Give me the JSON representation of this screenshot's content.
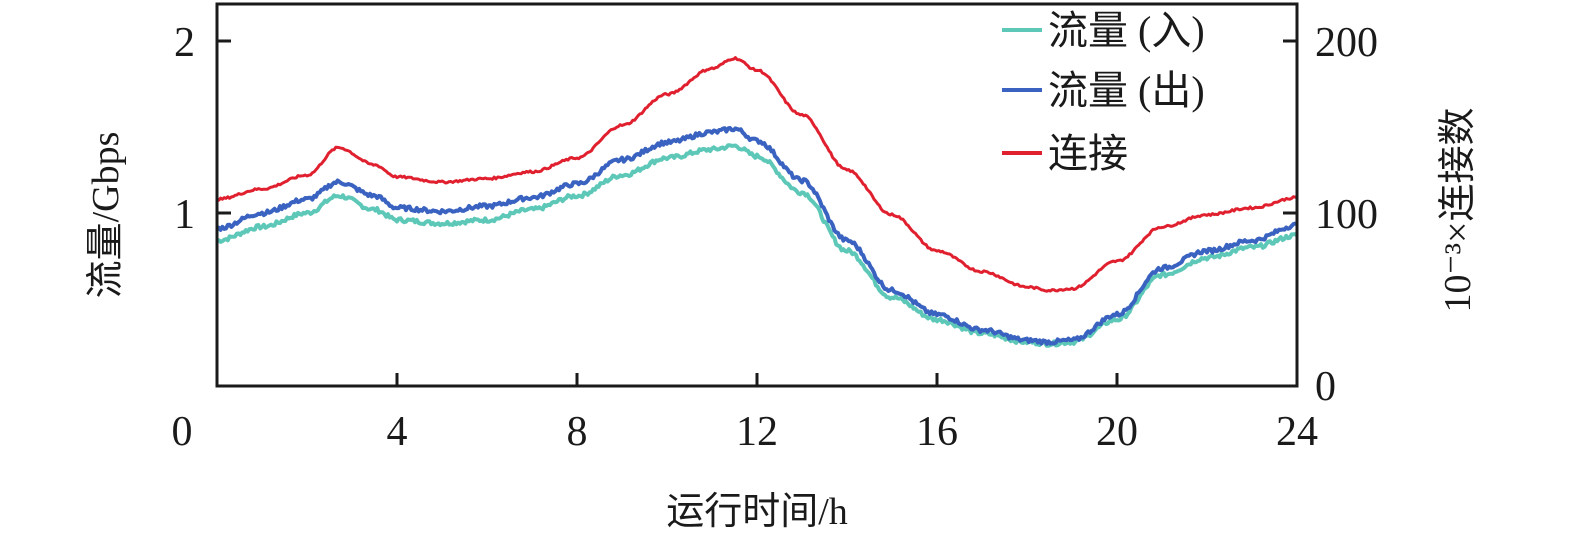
{
  "chart_data": {
    "type": "line",
    "title": "",
    "xlabel": "运行时间/h",
    "ylabel": "流量/Gbps",
    "y2label": "10⁻³×连接数",
    "xlim": [
      0,
      24
    ],
    "ylim": [
      0,
      2.2
    ],
    "y2lim": [
      0,
      220
    ],
    "xticks": [
      "0",
      "4",
      "8",
      "12",
      "16",
      "20",
      "24"
    ],
    "xtick_values": [
      0,
      4,
      8,
      12,
      16,
      20,
      24
    ],
    "yticks": [
      "1",
      "2"
    ],
    "ytick_values": [
      1,
      2
    ],
    "y2ticks": [
      "0",
      "100",
      "200"
    ],
    "y2tick_values": [
      0,
      100,
      200
    ],
    "grid": false,
    "legend_position": "top-right",
    "x": [
      0,
      1,
      2,
      2.7,
      3.5,
      4,
      5,
      6,
      7,
      8,
      9,
      10,
      11,
      11.5,
      12,
      13,
      14,
      15,
      16,
      17,
      18,
      18.5,
      19,
      20,
      21,
      22,
      23,
      24
    ],
    "series": [
      {
        "name": "流量 (入)",
        "axis": "left",
        "color": "#5ec8b8",
        "values": [
          0.84,
          0.92,
          1.0,
          1.1,
          1.02,
          0.96,
          0.94,
          0.96,
          1.02,
          1.1,
          1.22,
          1.32,
          1.37,
          1.39,
          1.33,
          1.12,
          0.78,
          0.51,
          0.38,
          0.3,
          0.25,
          0.24,
          0.25,
          0.38,
          0.64,
          0.74,
          0.8,
          0.87
        ]
      },
      {
        "name": "流量 (出)",
        "axis": "left",
        "color": "#3a62c0",
        "values": [
          0.91,
          1.0,
          1.08,
          1.18,
          1.1,
          1.03,
          1.01,
          1.04,
          1.09,
          1.17,
          1.31,
          1.41,
          1.47,
          1.49,
          1.42,
          1.19,
          0.84,
          0.55,
          0.41,
          0.32,
          0.26,
          0.25,
          0.26,
          0.41,
          0.68,
          0.78,
          0.84,
          0.93
        ]
      },
      {
        "name": "连接",
        "axis": "right",
        "color": "#e0202e",
        "values": [
          108,
          114,
          122,
          138,
          128,
          121,
          118,
          120,
          124,
          132,
          151,
          169,
          184,
          190,
          183,
          157,
          125,
          99,
          78,
          66,
          57,
          55,
          56,
          72,
          92,
          99,
          103,
          109
        ]
      }
    ]
  }
}
